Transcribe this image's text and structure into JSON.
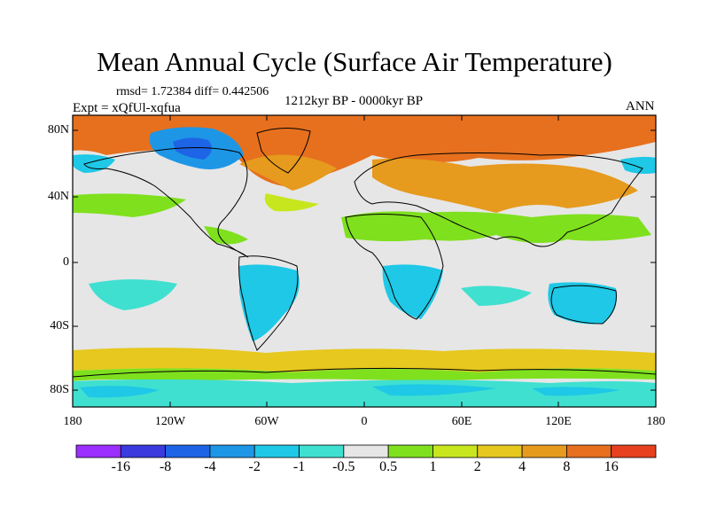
{
  "title": "Mean Annual Cycle (Surface Air Temperature)",
  "stats": "rmsd= 1.72384 diff= 0.442506",
  "experiment": "Expt = xQfUl-xqfua",
  "period": "1212kyr BP - 0000kyr BP",
  "season": "ANN",
  "lat_labels": [
    "80N",
    "40N",
    "0",
    "40S",
    "80S"
  ],
  "lon_labels": [
    "180",
    "120W",
    "60W",
    "0",
    "60E",
    "120E",
    "180"
  ],
  "colorbar": {
    "labels": [
      "-16",
      "-8",
      "-4",
      "-2",
      "-1",
      "-0.5",
      "0.5",
      "1",
      "2",
      "4",
      "8",
      "16"
    ],
    "colors": [
      "#9b30ff",
      "#3a3adf",
      "#1e64e6",
      "#1e96e6",
      "#1ec8e6",
      "#40e0d0",
      "#e6e6e6",
      "#7fe01e",
      "#c8e61e",
      "#e6c81e",
      "#e69a1e",
      "#e6701e",
      "#e6401e"
    ]
  },
  "map_colors": {
    "ocean": "#e6e6e6",
    "land_outline": "#000000",
    "warm_strong": "#e6701e",
    "warm": "#e69a1e",
    "warm_mild": "#e6c81e",
    "mild": "#c8e61e",
    "slight": "#7fe01e",
    "cool": "#40e0d0",
    "cooler": "#1ec8e6",
    "cold": "#1e96e6",
    "colder": "#1e64e6"
  }
}
